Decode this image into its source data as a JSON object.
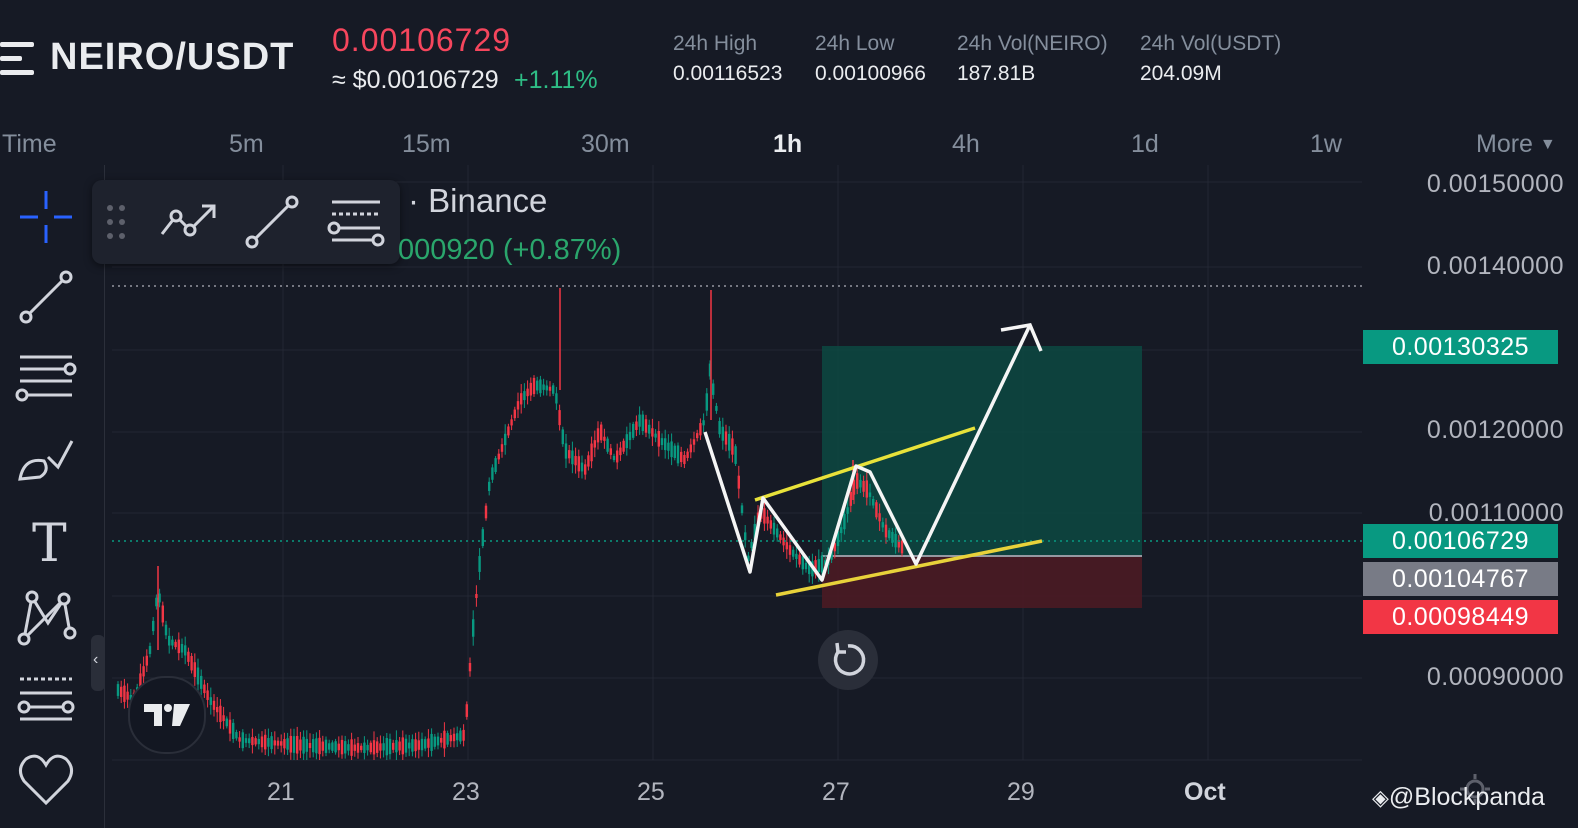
{
  "header": {
    "pair": "NEIRO/USDT",
    "last_price": "0.00106729",
    "usd_price": "≈ $0.00106729",
    "change_pct": "+1.11%",
    "stats": [
      {
        "label": "24h High",
        "value": "0.00116523"
      },
      {
        "label": "24h Low",
        "value": "0.00100966"
      },
      {
        "label": "24h Vol(NEIRO)",
        "value": "187.81B"
      },
      {
        "label": "24h Vol(USDT)",
        "value": "204.09M"
      }
    ]
  },
  "intervals": {
    "time_label": "Time",
    "items": [
      "5m",
      "15m",
      "30m",
      "1h",
      "4h",
      "1d",
      "1w"
    ],
    "active": "1h",
    "more_label": "More"
  },
  "legend": {
    "source": "· Binance",
    "change": "000920 (+0.87%)"
  },
  "price_axis": {
    "labels": [
      "0.00150000",
      "0.00140000",
      "0.00120000",
      "0.00110000",
      "0.00090000"
    ]
  },
  "price_tags": [
    {
      "value": "0.00130325",
      "color": "#089981"
    },
    {
      "value": "0.00106729",
      "color": "#089981"
    },
    {
      "value": "0.00104767",
      "color": "#787b86"
    },
    {
      "value": "0.00098449",
      "color": "#f23645"
    }
  ],
  "time_axis": {
    "labels": [
      "21",
      "23",
      "25",
      "27",
      "29",
      "Oct"
    ]
  },
  "watermark": "@Blockpanda",
  "colors": {
    "up": "#089981",
    "down": "#f23645",
    "accent": "#2962ff",
    "trend_yellow": "#f0e442"
  }
}
